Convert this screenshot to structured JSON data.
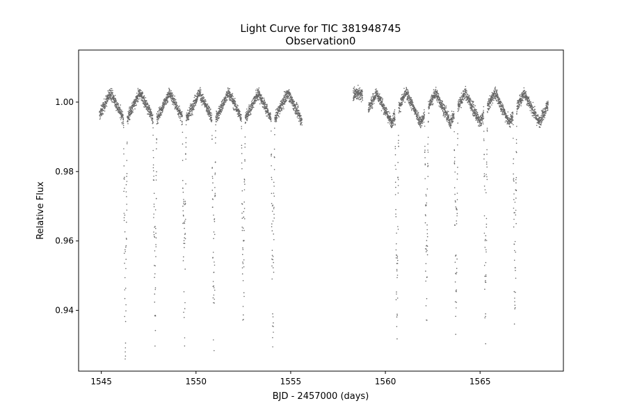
{
  "chart_data": {
    "type": "scatter",
    "title": "Light Curve for TIC 381948745",
    "subtitle": "Observation0",
    "xlabel": "BJD - 2457000 (days)",
    "ylabel": "Relative Flux",
    "xlim": [
      1543.8,
      1569.4
    ],
    "ylim": [
      0.9225,
      1.015
    ],
    "xticks": [
      1545,
      1550,
      1555,
      1560,
      1565
    ],
    "xtick_labels": [
      "1545",
      "1550",
      "1555",
      "1560",
      "1565"
    ],
    "yticks": [
      0.94,
      0.96,
      0.98,
      1.0
    ],
    "ytick_labels": [
      "0.94",
      "0.96",
      "0.98",
      "1.00"
    ],
    "grid": false,
    "marker_color": "#666666",
    "series": [
      {
        "segments": [
          {
            "x_range": [
              1544.9,
              1555.6
            ]
          },
          {
            "x_range": [
              1558.3,
              1558.8
            ]
          },
          {
            "x_range": [
              1559.1,
              1568.6
            ]
          }
        ],
        "out_of_eclipse_baseline": 1.0,
        "variability_amplitude": 0.006,
        "eclipse_times": [
          1546.27,
          1547.83,
          1549.38,
          1550.94,
          1552.5,
          1554.06,
          1560.61,
          1562.17,
          1563.73,
          1565.29,
          1566.84
        ],
        "eclipse_min_flux": [
          0.9285,
          0.93,
          0.93,
          0.93,
          0.93,
          0.933,
          0.927,
          0.93,
          0.93,
          0.929,
          0.9315
        ]
      }
    ]
  }
}
